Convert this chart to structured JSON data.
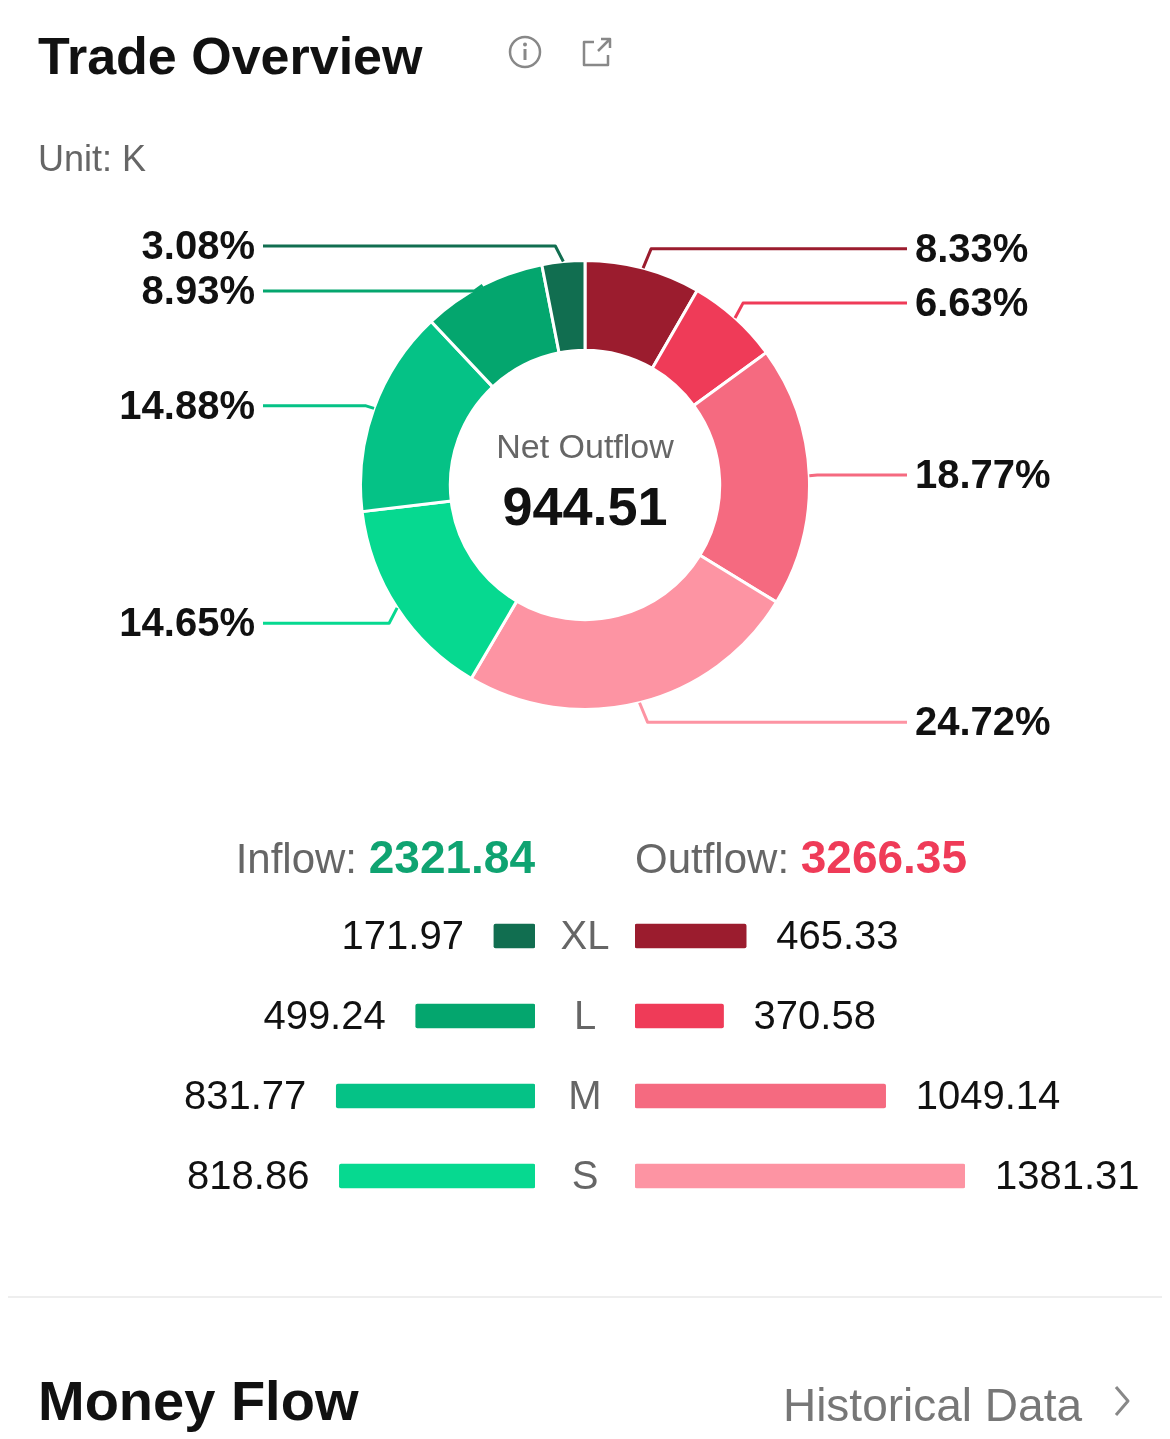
{
  "chart_data": [
    {
      "type": "donut",
      "title": "Trade Overview",
      "subtitle": "Unit: K",
      "categories": [
        null,
        null,
        null,
        null,
        null,
        null,
        null,
        null
      ],
      "values": [
        8.33,
        6.63,
        18.77,
        24.72,
        14.65,
        14.88,
        8.93,
        3.08
      ],
      "value_labels": [
        "8.33%",
        "6.63%",
        "18.77%",
        "24.72%",
        "14.65%",
        "14.88%",
        "8.93%",
        "3.08%"
      ],
      "colors": [
        "#9b1c2e",
        "#ef3b58",
        "#f56a80",
        "#fd94a3",
        "#06d990",
        "#05c286",
        "#04a66e",
        "#116e50"
      ],
      "annotations": [
        "Net Outflow",
        "944.51"
      ]
    },
    {
      "type": "bar",
      "orientation": "horizontal",
      "categories": [
        "XL",
        "L",
        "M",
        "S"
      ],
      "data_labels": true,
      "series": [
        {
          "name": "Inflow:",
          "color": "#0fa371",
          "colors": [
            "#116e50",
            "#04a66e",
            "#05c286",
            "#06d990"
          ],
          "values": [
            171.97,
            499.24,
            831.77,
            818.86
          ]
        }
      ],
      "annotations": [
        "2321.84"
      ]
    },
    {
      "type": "bar",
      "orientation": "horizontal",
      "categories": [
        null,
        null,
        null,
        null
      ],
      "data_labels": true,
      "series": [
        {
          "name": "Outflow:",
          "color": "#ef3b58",
          "colors": [
            "#9b1c2e",
            "#ef3b58",
            "#f56a80",
            "#fd94a3"
          ],
          "values": [
            465.33,
            370.58,
            1049.14,
            1381.31
          ]
        }
      ],
      "annotations": [
        "3266.35",
        "Money Flow",
        "Historical Data"
      ]
    }
  ]
}
